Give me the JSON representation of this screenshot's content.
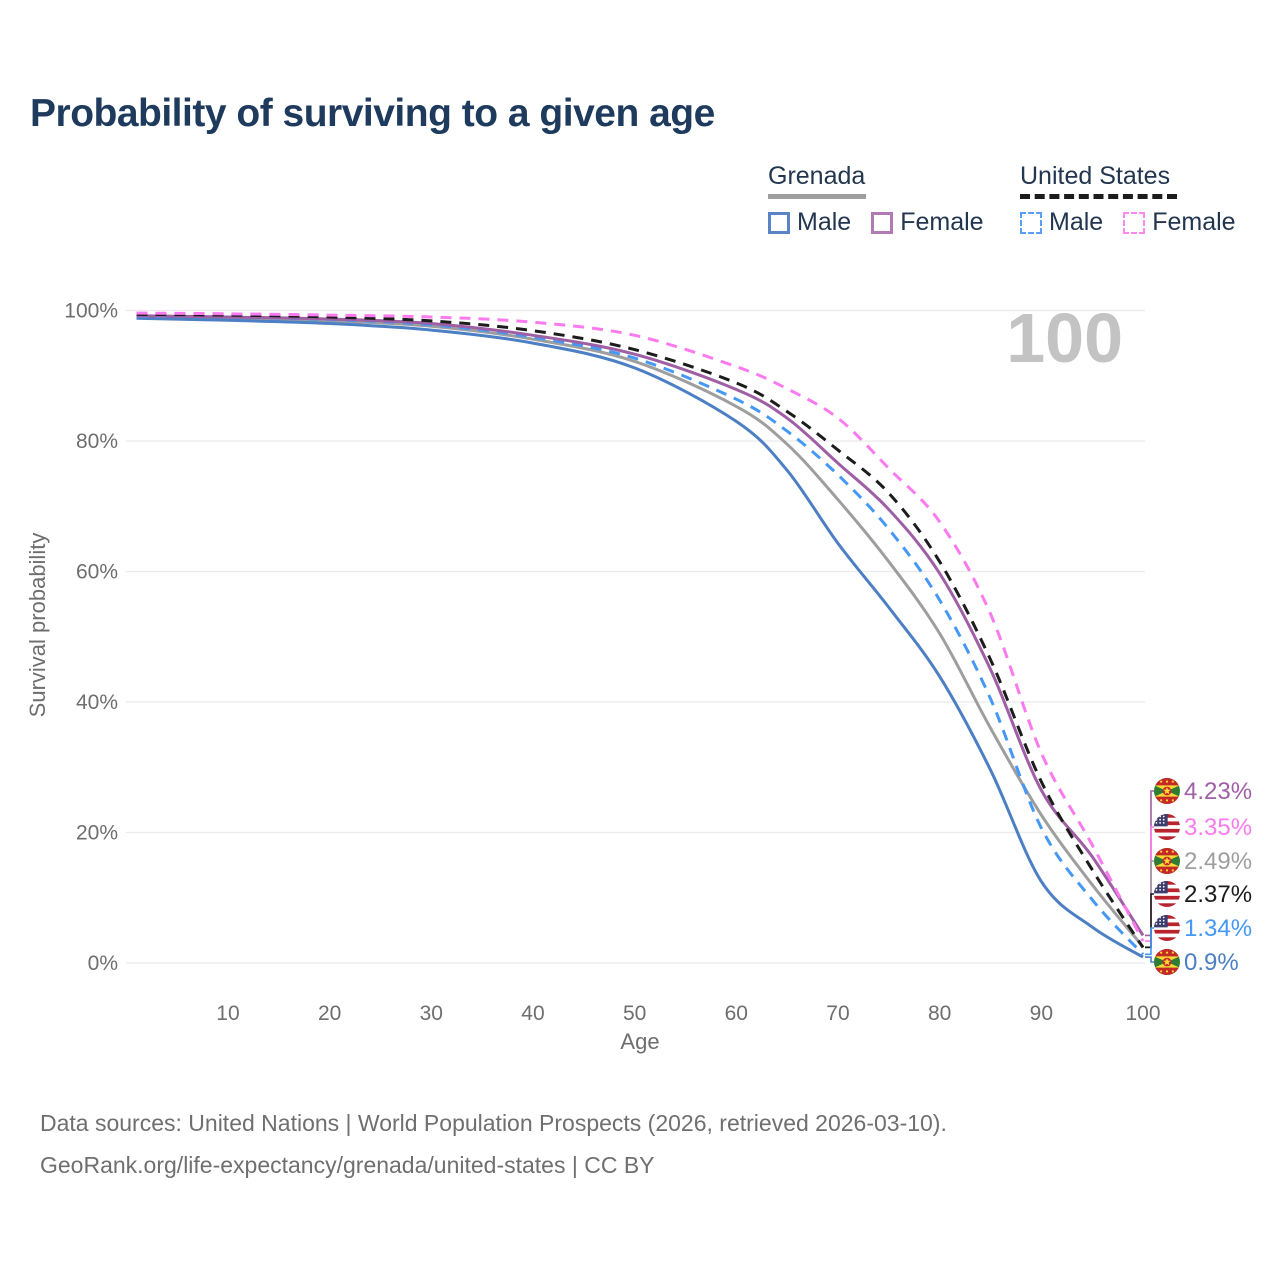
{
  "title": "Probability of surviving to a given age",
  "legend": {
    "groups": [
      {
        "label": "Grenada",
        "line_style": "solid",
        "line_color": "#9e9e9e",
        "items": [
          {
            "label": "Male",
            "color": "#5b84c6"
          },
          {
            "label": "Female",
            "color": "#b27ab4"
          }
        ]
      },
      {
        "label": "United States",
        "line_style": "dashed",
        "line_color": "#1c1c1c",
        "items": [
          {
            "label": "Male",
            "color": "#57a0f5"
          },
          {
            "label": "Female",
            "color": "#fb8af0"
          }
        ]
      }
    ]
  },
  "chart_data": {
    "type": "line",
    "title": "Probability of surviving to a given age",
    "xlabel": "Age",
    "ylabel": "Survival probability",
    "x_range": [
      1,
      100
    ],
    "y_range": [
      0,
      100
    ],
    "grid": "horizontal",
    "age_indicator": "100",
    "x_ticks": [
      10,
      20,
      30,
      40,
      50,
      60,
      70,
      80,
      90,
      100
    ],
    "y_ticks": [
      0,
      20,
      40,
      60,
      80,
      100
    ],
    "y_tick_labels": [
      "0%",
      "20%",
      "40%",
      "60%",
      "80%",
      "100%"
    ],
    "ages": [
      1,
      10,
      20,
      30,
      40,
      50,
      60,
      65,
      70,
      75,
      80,
      85,
      90,
      95,
      100
    ],
    "series": [
      {
        "id": "grenada-total",
        "name": "Grenada — Both sexes",
        "country": "grenada",
        "style": "solid",
        "color": "#9e9e9e",
        "end_label": "2.49%",
        "values": [
          99.0,
          98.8,
          98.4,
          97.6,
          95.6,
          92.2,
          85.3,
          79.5,
          71.0,
          61.5,
          50.5,
          36.0,
          22.7,
          12.0,
          2.49
        ]
      },
      {
        "id": "grenada-male",
        "name": "Grenada — Male",
        "country": "grenada",
        "style": "solid",
        "color": "#4c7fc4",
        "end_label": "0.9%",
        "values": [
          98.8,
          98.5,
          98.0,
          97.0,
          95.0,
          91.2,
          83.0,
          75.5,
          64.3,
          54.5,
          43.9,
          29.6,
          12.5,
          5.5,
          0.9
        ]
      },
      {
        "id": "us-male",
        "name": "United States — Male",
        "country": "us",
        "style": "dashed",
        "color": "#4598f5",
        "end_label": "1.34%",
        "values": [
          99.1,
          99.0,
          98.6,
          97.8,
          95.9,
          92.7,
          86.4,
          81.5,
          74.8,
          66.5,
          55.6,
          40.5,
          20.7,
          9.7,
          1.34
        ]
      },
      {
        "id": "grenada-female",
        "name": "Grenada — Female",
        "country": "grenada",
        "style": "solid",
        "color": "#9f5fa5",
        "end_label": "4.23%",
        "values": [
          99.2,
          99.0,
          98.7,
          98.0,
          96.2,
          93.3,
          87.9,
          83.5,
          76.6,
          69.5,
          59.7,
          45.0,
          26.5,
          16.3,
          4.23
        ]
      },
      {
        "id": "us-total",
        "name": "United States — Both sexes",
        "country": "us",
        "style": "dashed",
        "color": "#1c1c1c",
        "end_label": "2.37%",
        "values": [
          99.4,
          99.3,
          99.0,
          98.4,
          96.9,
          94.0,
          88.9,
          84.5,
          78.6,
          72.0,
          61.5,
          46.5,
          27.8,
          14.3,
          2.37
        ]
      },
      {
        "id": "us-female",
        "name": "United States — Female",
        "country": "us",
        "style": "dashed",
        "color": "#fb7bef",
        "end_label": "3.35%",
        "values": [
          99.6,
          99.5,
          99.3,
          99.0,
          98.2,
          96.2,
          91.4,
          88.0,
          83.5,
          75.8,
          67.6,
          53.5,
          32.2,
          18.1,
          3.35
        ]
      }
    ]
  },
  "footer": {
    "line1": "Data sources: United Nations | World Population Prospects (2026, retrieved 2026-03-10).",
    "line2": "GeoRank.org/life-expectancy/grenada/united-states | CC BY"
  }
}
